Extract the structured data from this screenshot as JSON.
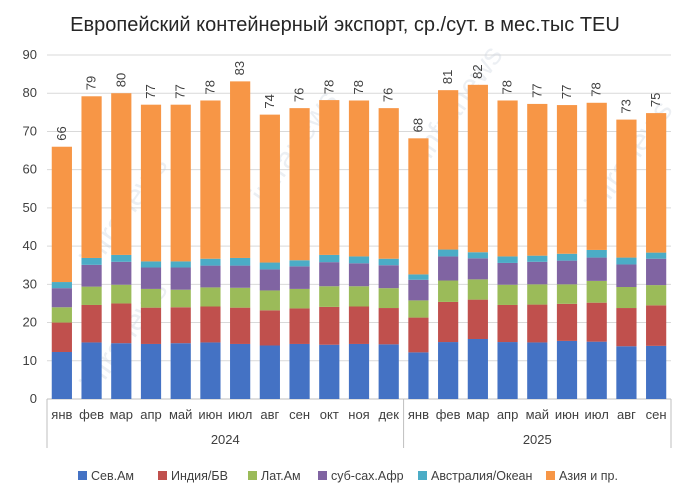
{
  "chart_data": {
    "type": "bar",
    "stacked": true,
    "title": "Европейский контейнерный экспорт, ср./сут. в мес.тыс TEU",
    "watermark": "infranews",
    "ylim": [
      0,
      90
    ],
    "yticks": [
      0,
      10,
      20,
      30,
      40,
      50,
      60,
      70,
      80,
      90
    ],
    "grid": true,
    "legend_position": "bottom",
    "categories": [
      "янв",
      "фев",
      "мар",
      "апр",
      "май",
      "июн",
      "июл",
      "авг",
      "сен",
      "окт",
      "ноя",
      "дек",
      "янв",
      "фев",
      "мар",
      "апр",
      "май",
      "июн",
      "июл",
      "авг",
      "сен"
    ],
    "groups": [
      {
        "label": "2024",
        "count": 12
      },
      {
        "label": "2025",
        "count": 9
      }
    ],
    "totals": [
      "66",
      "79",
      "80",
      "77",
      "77",
      "78",
      "83",
      "74",
      "76",
      "78",
      "78",
      "76",
      "68",
      "81",
      "82",
      "78",
      "77",
      "77",
      "78",
      "73",
      "75"
    ],
    "series": [
      {
        "name": "Сев.Ам",
        "color": "#4472C4",
        "values": [
          12.3,
          14.8,
          14.6,
          14.4,
          14.6,
          14.8,
          14.4,
          14.0,
          14.4,
          14.2,
          14.4,
          14.3,
          12.2,
          14.9,
          15.7,
          14.9,
          14.8,
          15.2,
          15.0,
          13.8,
          13.9
        ]
      },
      {
        "name": "Индия/БВ",
        "color": "#C0504D",
        "values": [
          7.7,
          9.8,
          10.4,
          9.5,
          9.4,
          9.4,
          9.5,
          9.2,
          9.3,
          9.9,
          9.8,
          9.5,
          9.1,
          10.5,
          10.3,
          9.7,
          9.9,
          9.7,
          10.2,
          10.0,
          10.6
        ]
      },
      {
        "name": "Лат.Ам",
        "color": "#9BBB59",
        "values": [
          4.0,
          4.8,
          4.9,
          4.9,
          4.6,
          5.0,
          5.2,
          5.2,
          5.1,
          5.4,
          5.3,
          5.2,
          4.5,
          5.6,
          5.3,
          5.3,
          5.3,
          5.1,
          5.7,
          5.5,
          5.3
        ]
      },
      {
        "name": "суб-сах.Афр",
        "color": "#8064A2",
        "values": [
          5.0,
          5.7,
          6.0,
          5.6,
          5.8,
          5.7,
          5.8,
          5.5,
          5.9,
          6.3,
          6.0,
          6.0,
          5.4,
          6.3,
          5.5,
          5.7,
          5.9,
          6.2,
          6.1,
          5.9,
          6.9
        ]
      },
      {
        "name": "Австралия/Океан",
        "color": "#4BACC6",
        "values": [
          1.6,
          1.8,
          1.8,
          1.6,
          1.6,
          1.8,
          2.0,
          1.8,
          1.6,
          1.9,
          1.8,
          1.7,
          1.4,
          1.8,
          1.6,
          1.7,
          1.6,
          1.8,
          2.0,
          1.8,
          1.6
        ]
      },
      {
        "name": "Азия и пр.",
        "color": "#F79646",
        "values": [
          35.4,
          42.3,
          42.3,
          41.0,
          41.0,
          41.4,
          46.2,
          38.7,
          39.8,
          40.5,
          40.8,
          39.4,
          35.6,
          41.7,
          43.8,
          40.8,
          39.7,
          38.9,
          38.5,
          36.1,
          36.5
        ]
      }
    ]
  }
}
